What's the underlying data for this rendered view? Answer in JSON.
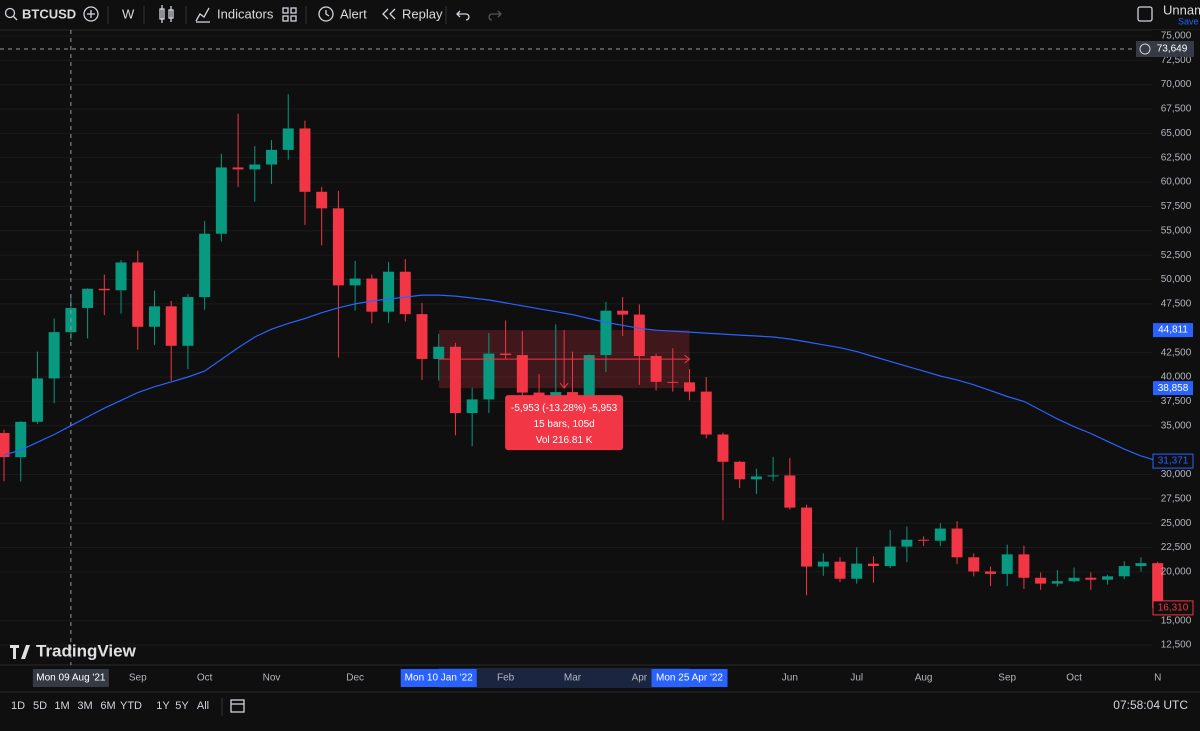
{
  "toolbar": {
    "symbol": "BTCUSD",
    "interval": "W",
    "indicators": "Indicators",
    "alert": "Alert",
    "replay": "Replay",
    "layout_name": "Unname",
    "save": "Save"
  },
  "bottom_bar": {
    "ranges": [
      "1D",
      "5D",
      "1M",
      "3M",
      "6M",
      "YTD",
      "1Y",
      "5Y",
      "All"
    ],
    "clock": "07:58:04 UTC"
  },
  "logo": "TradingView",
  "chart_data": {
    "type": "candlestick",
    "categories": [
      null,
      null,
      null,
      null,
      null,
      null,
      null,
      null,
      "Sep",
      null,
      null,
      null,
      "Oct",
      null,
      null,
      null,
      "Nov",
      null,
      null,
      null,
      null,
      "Dec",
      null,
      null,
      null,
      null,
      null,
      null,
      null,
      null,
      "Feb",
      null,
      null,
      null,
      "Mar",
      null,
      null,
      null,
      "Apr",
      null,
      null,
      null,
      null,
      null,
      null,
      null,
      null,
      "Jun",
      null,
      null,
      null,
      "Jul",
      null,
      null,
      null,
      "Aug",
      null,
      null,
      null,
      null,
      "Sep",
      null,
      null,
      null,
      "Oct",
      null,
      null,
      null,
      null,
      "N"
    ],
    "open": [
      34250,
      31780,
      35400,
      39850,
      44600,
      47080,
      49050,
      48900,
      51750,
      45150,
      47250,
      43200,
      48200,
      54700,
      61500,
      61300,
      61800,
      63300,
      65500,
      59000,
      57300,
      49400,
      50100,
      46700,
      50800,
      46450,
      41850,
      43100,
      36300,
      37700,
      42400,
      42250,
      38400,
      38000,
      38450,
      37800,
      42250,
      46800,
      46400,
      42150,
      39500,
      39450,
      38500,
      34100,
      31300,
      29500,
      29800,
      29900,
      26600,
      20550,
      21050,
      19300,
      20850,
      20600,
      22600,
      23300,
      23200,
      24450,
      21500,
      20050,
      19800,
      21800,
      19400,
      18800,
      19050,
      19400,
      19200,
      19550,
      20600,
      20900
    ],
    "high": [
      34600,
      35450,
      42600,
      46000,
      48150,
      49100,
      50500,
      52000,
      52950,
      48850,
      47800,
      48500,
      56000,
      62900,
      67000,
      63700,
      64300,
      69000,
      66300,
      59500,
      59100,
      51900,
      50500,
      51800,
      52100,
      47600,
      44400,
      43500,
      38900,
      44500,
      45800,
      44700,
      40300,
      45400,
      42600,
      42300,
      47700,
      48200,
      47450,
      42400,
      42950,
      40800,
      40000,
      34300,
      31400,
      30600,
      31800,
      31700,
      26900,
      21900,
      21500,
      22500,
      21600,
      24300,
      24650,
      23650,
      25000,
      25200,
      21900,
      20550,
      22800,
      22700,
      19950,
      20200,
      20450,
      19950,
      19700,
      21100,
      21500,
      21050
    ],
    "low": [
      29300,
      29280,
      35200,
      37300,
      43800,
      43950,
      46350,
      46500,
      42800,
      43300,
      39600,
      40800,
      46900,
      53900,
      59500,
      58000,
      59800,
      62300,
      55600,
      53500,
      42000,
      46800,
      45500,
      45550,
      45700,
      39700,
      39650,
      34000,
      32900,
      36300,
      41800,
      37900,
      34350,
      37200,
      37150,
      37600,
      40500,
      44200,
      39200,
      38600,
      38500,
      37600,
      33700,
      25300,
      28600,
      28000,
      29300,
      26400,
      17600,
      19600,
      18950,
      18800,
      18900,
      20400,
      21000,
      22650,
      22650,
      20800,
      19550,
      18550,
      18550,
      18250,
      18150,
      18500,
      18950,
      18150,
      18700,
      19250,
      20050,
      15600
    ],
    "close": [
      31780,
      35400,
      39850,
      44600,
      47080,
      49050,
      48900,
      51750,
      45150,
      47250,
      43200,
      48200,
      54700,
      61500,
      61300,
      61800,
      63300,
      65500,
      59000,
      57300,
      49400,
      50100,
      46700,
      50800,
      46450,
      41850,
      43100,
      36300,
      37700,
      42400,
      42250,
      38400,
      38000,
      38450,
      37800,
      42250,
      46800,
      46400,
      42150,
      39500,
      39450,
      38500,
      34100,
      31300,
      29500,
      29800,
      29900,
      26600,
      20550,
      21050,
      19300,
      20850,
      20600,
      22600,
      23300,
      23200,
      24450,
      21500,
      20050,
      19800,
      21800,
      19400,
      18800,
      19050,
      19400,
      19200,
      19550,
      20600,
      20900,
      16310
    ],
    "up_color": "#089981",
    "down_color": "#f23645",
    "lines": [
      {
        "color": "#2962ff",
        "values": [
          32000,
          32500,
          33300,
          34100,
          35000,
          35900,
          36800,
          37600,
          38400,
          39000,
          39500,
          40000,
          40600,
          41800,
          43000,
          44100,
          44900,
          45500,
          46000,
          46600,
          47100,
          47500,
          47800,
          48000,
          48200,
          48400,
          48400,
          48300,
          48100,
          47900,
          47600,
          47300,
          47000,
          46700,
          46400,
          46000,
          45600,
          45300,
          45000,
          44800,
          44700,
          44600,
          44500,
          44400,
          44300,
          44200,
          44100,
          43900,
          43600,
          43300,
          43000,
          42600,
          42100,
          41600,
          41100,
          40600,
          40100,
          39700,
          39200,
          38600,
          38000,
          37500,
          36600,
          35700,
          34900,
          34200,
          33400,
          32600,
          31900,
          31371
        ],
        "last_label": {
          "value": 31371,
          "label": "31,371"
        }
      }
    ],
    "last_price": {
      "value": 16310,
      "label": "16,310"
    },
    "crosshair": {
      "x_label": "Mon 09 Aug '21",
      "y": {
        "value": 73649,
        "label": "73,649"
      }
    },
    "measure": {
      "start_label": "Mon 10 Jan '22",
      "end_label": "Mon 25 Apr '22",
      "high": {
        "value": 44811,
        "label": "44,811"
      },
      "low": {
        "value": 38858,
        "label": "38,858"
      },
      "info": [
        "-5,953 (-13.28%) -5,953",
        "15 bars, 105d",
        "Vol 216.81 K"
      ]
    },
    "ylim": [
      10450,
      75600
    ],
    "yticks": [
      {
        "value": 12500,
        "label": "12,500"
      },
      {
        "value": 15000,
        "label": "15,000"
      },
      {
        "value": 20000,
        "label": "20,000"
      },
      {
        "value": 22500,
        "label": "22,500"
      },
      {
        "value": 25000,
        "label": "25,000"
      },
      {
        "value": 27500,
        "label": "27,500"
      },
      {
        "value": 30000,
        "label": "30,000"
      },
      {
        "value": 35000,
        "label": "35,000"
      },
      {
        "value": 37500,
        "label": "37,500"
      },
      {
        "value": 40000,
        "label": "40,000"
      },
      {
        "value": 42500,
        "label": "42,500"
      },
      {
        "value": 47500,
        "label": "47,500"
      },
      {
        "value": 50000,
        "label": "50,000"
      },
      {
        "value": 52500,
        "label": "52,500"
      },
      {
        "value": 55000,
        "label": "55,000"
      },
      {
        "value": 57500,
        "label": "57,500"
      },
      {
        "value": 60000,
        "label": "60,000"
      },
      {
        "value": 62500,
        "label": "62,500"
      },
      {
        "value": 65000,
        "label": "65,000"
      },
      {
        "value": 67500,
        "label": "67,500"
      },
      {
        "value": 70000,
        "label": "70,000"
      },
      {
        "value": 72500,
        "label": "72,500"
      },
      {
        "value": 75000,
        "label": "75,000"
      }
    ],
    "grid": true
  }
}
